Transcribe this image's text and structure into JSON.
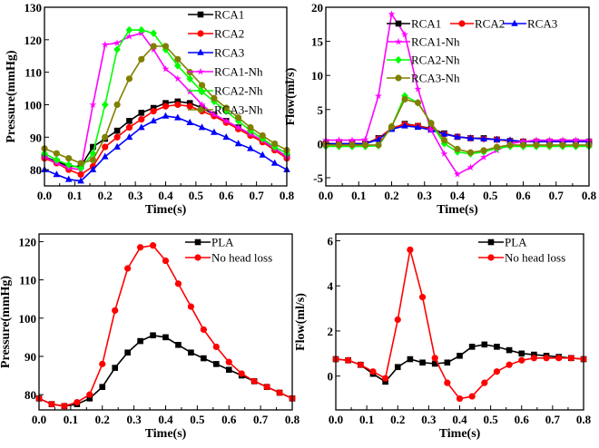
{
  "chart_data": [
    {
      "type": "line",
      "xlabel": "Time(s)",
      "ylabel": "Pressure(mmHg)",
      "xlim": [
        0,
        0.8
      ],
      "ylim": [
        75,
        130
      ],
      "xticks": [
        "0.0",
        "0.1",
        "0.2",
        "0.3",
        "0.4",
        "0.5",
        "0.6",
        "0.7",
        "0.8"
      ],
      "yticks": [
        "80",
        "90",
        "100",
        "110",
        "120",
        "130"
      ],
      "legend": "top-right",
      "x": [
        0,
        0.04,
        0.08,
        0.12,
        0.16,
        0.2,
        0.24,
        0.28,
        0.32,
        0.36,
        0.4,
        0.44,
        0.48,
        0.52,
        0.56,
        0.6,
        0.64,
        0.68,
        0.72,
        0.76,
        0.8
      ],
      "series": [
        {
          "name": "RCA1",
          "color": "#000000",
          "marker": "square",
          "values": [
            84,
            82.5,
            81,
            81,
            87,
            89.5,
            92,
            95,
            97.5,
            99,
            100.5,
            101,
            100.5,
            99,
            97,
            95,
            93,
            91,
            89,
            86.5,
            84
          ]
        },
        {
          "name": "RCA2",
          "color": "#ff0000",
          "marker": "circle",
          "values": [
            83.5,
            82,
            80,
            78.5,
            81,
            87,
            90,
            93,
            95.5,
            98,
            99.5,
            100,
            99.5,
            98,
            96.5,
            94.5,
            92.5,
            90.5,
            88.5,
            86,
            83.5
          ]
        },
        {
          "name": "RCA3",
          "color": "#0000ff",
          "marker": "triangle",
          "values": [
            80,
            78.5,
            77,
            76.5,
            80,
            84,
            87,
            90,
            93,
            95,
            96.5,
            96,
            94.5,
            93,
            91.5,
            90,
            88,
            86.5,
            84.5,
            82,
            80
          ]
        },
        {
          "name": "RCA1-Nh",
          "color": "#ff00ff",
          "marker": "star",
          "values": [
            84,
            82,
            80.5,
            80,
            100,
            118.5,
            119,
            121,
            122,
            117,
            111,
            108,
            104,
            100,
            97,
            95,
            93,
            91,
            89,
            86.5,
            84
          ]
        },
        {
          "name": "RCA2-Nh",
          "color": "#00ff00",
          "marker": "diamond",
          "values": [
            85,
            83,
            81.5,
            80.5,
            85,
            100,
            117,
            123,
            123,
            122,
            117,
            112,
            108,
            104,
            101,
            98,
            95,
            92,
            89.5,
            87,
            85
          ]
        },
        {
          "name": "RCA3-Nh",
          "color": "#808000",
          "marker": "hexagon",
          "values": [
            86.5,
            85,
            83.5,
            82,
            83,
            90,
            100,
            108,
            114,
            118,
            118,
            114,
            110,
            106,
            102,
            99,
            96,
            93,
            90.5,
            88,
            86
          ]
        }
      ]
    },
    {
      "type": "line",
      "xlabel": "Time(s)",
      "ylabel": "Flow(ml/s)",
      "xlim": [
        0,
        0.8
      ],
      "ylim": [
        -6.2,
        20
      ],
      "xticks": [
        "0.0",
        "0.1",
        "0.2",
        "0.3",
        "0.4",
        "0.5",
        "0.6",
        "0.7",
        "0.8"
      ],
      "yticks": [
        "-5",
        "0",
        "5",
        "10",
        "15",
        "20"
      ],
      "legend": "top-right",
      "x": [
        0,
        0.04,
        0.08,
        0.12,
        0.16,
        0.2,
        0.24,
        0.28,
        0.32,
        0.36,
        0.4,
        0.44,
        0.48,
        0.52,
        0.56,
        0.6,
        0.64,
        0.68,
        0.72,
        0.76,
        0.8
      ],
      "series": [
        {
          "name": "RCA1",
          "color": "#000000",
          "marker": "square",
          "values": [
            0,
            0,
            0,
            0,
            0.8,
            2.2,
            2.9,
            2.6,
            2.2,
            1.5,
            1,
            0.8,
            0.8,
            0.6,
            0.4,
            0.3,
            0.3,
            0.3,
            0.3,
            0.3,
            0.3
          ]
        },
        {
          "name": "RCA2",
          "color": "#ff0000",
          "marker": "circle",
          "values": [
            0,
            0,
            0,
            0,
            0.7,
            2.3,
            2.8,
            2.6,
            2.1,
            1.4,
            1,
            0.8,
            0.7,
            0.6,
            0.4,
            0.3,
            0.3,
            0.3,
            0.3,
            0.3,
            0.3
          ]
        },
        {
          "name": "RCA3",
          "color": "#0000ff",
          "marker": "triangle",
          "values": [
            0,
            0,
            0,
            0,
            0.6,
            2.1,
            2.6,
            2.4,
            2,
            1.4,
            1,
            0.8,
            0.7,
            0.6,
            0.5,
            0.3,
            0.3,
            0.3,
            0.3,
            0.3,
            0.3
          ]
        },
        {
          "name": "RCA1-Nh",
          "color": "#ff00ff",
          "marker": "star",
          "values": [
            0.5,
            0.5,
            0.5,
            0.6,
            7,
            19,
            16,
            8,
            2,
            -1.5,
            -4.5,
            -3.5,
            -2,
            -1,
            0,
            0.3,
            0.5,
            0.5,
            0.5,
            0.5,
            0.5
          ]
        },
        {
          "name": "RCA2-Nh",
          "color": "#00ff00",
          "marker": "diamond",
          "values": [
            -0.4,
            -0.4,
            -0.4,
            -0.4,
            -0.3,
            2.5,
            7,
            6,
            3,
            0,
            -1.2,
            -1.5,
            -1.2,
            -0.7,
            -0.4,
            -0.4,
            -0.4,
            -0.4,
            -0.4,
            -0.4,
            -0.4
          ]
        },
        {
          "name": "RCA3-Nh",
          "color": "#808000",
          "marker": "hexagon",
          "values": [
            -0.2,
            -0.2,
            -0.2,
            -0.2,
            -0.2,
            2.5,
            6.5,
            6,
            3,
            0.5,
            -0.8,
            -1.3,
            -1,
            -0.5,
            -0.2,
            -0.2,
            -0.2,
            -0.2,
            -0.2,
            -0.2,
            -0.2
          ]
        }
      ]
    },
    {
      "type": "line",
      "xlabel": "Time(s)",
      "ylabel": "Pressure(mmHg)",
      "xlim": [
        0,
        0.8
      ],
      "ylim": [
        76,
        122
      ],
      "xticks": [
        "0.0",
        "0.1",
        "0.2",
        "0.3",
        "0.4",
        "0.5",
        "0.6",
        "0.7",
        "0.8"
      ],
      "yticks": [
        "80",
        "90",
        "100",
        "110",
        "120"
      ],
      "legend": "top-right",
      "x": [
        0,
        0.04,
        0.08,
        0.12,
        0.16,
        0.2,
        0.24,
        0.28,
        0.32,
        0.36,
        0.4,
        0.44,
        0.48,
        0.52,
        0.56,
        0.6,
        0.64,
        0.68,
        0.72,
        0.76,
        0.8
      ],
      "series": [
        {
          "name": "PLA",
          "color": "#000000",
          "marker": "square",
          "values": [
            79,
            77.5,
            77,
            77.5,
            79,
            82,
            87,
            91,
            94,
            95.5,
            95,
            93,
            91,
            89.5,
            88,
            86.5,
            85,
            83.5,
            82,
            80.5,
            79
          ]
        },
        {
          "name": "No head loss",
          "color": "#ff0000",
          "marker": "circle",
          "values": [
            79,
            77.5,
            77,
            78,
            80,
            88,
            102,
            113,
            118.5,
            119,
            115,
            109,
            103,
            97,
            92.5,
            88.5,
            85.5,
            83.5,
            82,
            80.5,
            79
          ]
        }
      ]
    },
    {
      "type": "line",
      "xlabel": "Time(s)",
      "ylabel": "Flow(ml/s)",
      "xlim": [
        0,
        0.8
      ],
      "ylim": [
        -1.5,
        6.3
      ],
      "xticks": [
        "0.0",
        "0.1",
        "0.2",
        "0.3",
        "0.4",
        "0.5",
        "0.6",
        "0.7",
        "0.8"
      ],
      "yticks": [
        "0",
        "2",
        "4",
        "6"
      ],
      "legend": "top-right",
      "x": [
        0,
        0.04,
        0.08,
        0.12,
        0.16,
        0.2,
        0.24,
        0.28,
        0.32,
        0.36,
        0.4,
        0.44,
        0.48,
        0.52,
        0.56,
        0.6,
        0.64,
        0.68,
        0.72,
        0.76,
        0.8
      ],
      "series": [
        {
          "name": "PLA",
          "color": "#000000",
          "marker": "square",
          "values": [
            0.75,
            0.7,
            0.5,
            0.1,
            -0.25,
            0.4,
            0.75,
            0.6,
            0.55,
            0.6,
            0.9,
            1.3,
            1.4,
            1.3,
            1.15,
            1,
            0.95,
            0.9,
            0.85,
            0.8,
            0.75
          ]
        },
        {
          "name": "No head loss",
          "color": "#ff0000",
          "marker": "circle",
          "values": [
            0.75,
            0.7,
            0.5,
            0.2,
            -0.1,
            2.5,
            5.6,
            3.5,
            0.8,
            -0.3,
            -1.0,
            -0.9,
            -0.3,
            0.2,
            0.5,
            0.7,
            0.8,
            0.8,
            0.8,
            0.8,
            0.75
          ]
        }
      ]
    }
  ]
}
